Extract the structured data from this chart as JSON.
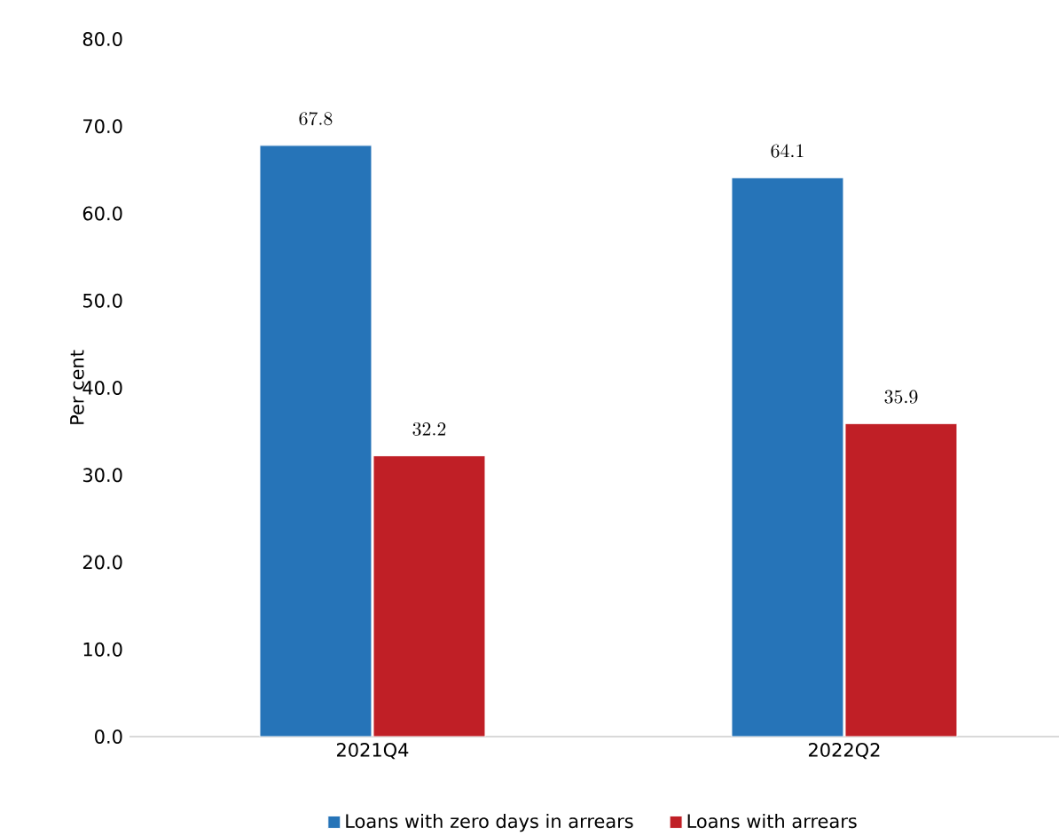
{
  "chart_data": {
    "type": "bar",
    "ylabel": "Per cent",
    "categories": [
      "2021Q4",
      "2022Q2"
    ],
    "series": [
      {
        "name": "Loans with zero days in arrears",
        "color": "#2674b8",
        "values": [
          67.8,
          64.1
        ]
      },
      {
        "name": "Loans with arrears",
        "color": "#c01f26",
        "values": [
          32.2,
          35.9
        ]
      }
    ],
    "ylim": [
      0,
      80
    ],
    "yticks": [
      {
        "value": 0,
        "label": "0.0"
      },
      {
        "value": 10,
        "label": "10.0"
      },
      {
        "value": 20,
        "label": "20.0"
      },
      {
        "value": 30,
        "label": "30.0"
      },
      {
        "value": 40,
        "label": "40.0"
      },
      {
        "value": 50,
        "label": "50.0"
      },
      {
        "value": 60,
        "label": "60.0"
      },
      {
        "value": 70,
        "label": "70.0"
      },
      {
        "value": 80,
        "label": "80.0"
      }
    ],
    "data_labels": true,
    "grid": false,
    "legend": "bottom"
  }
}
